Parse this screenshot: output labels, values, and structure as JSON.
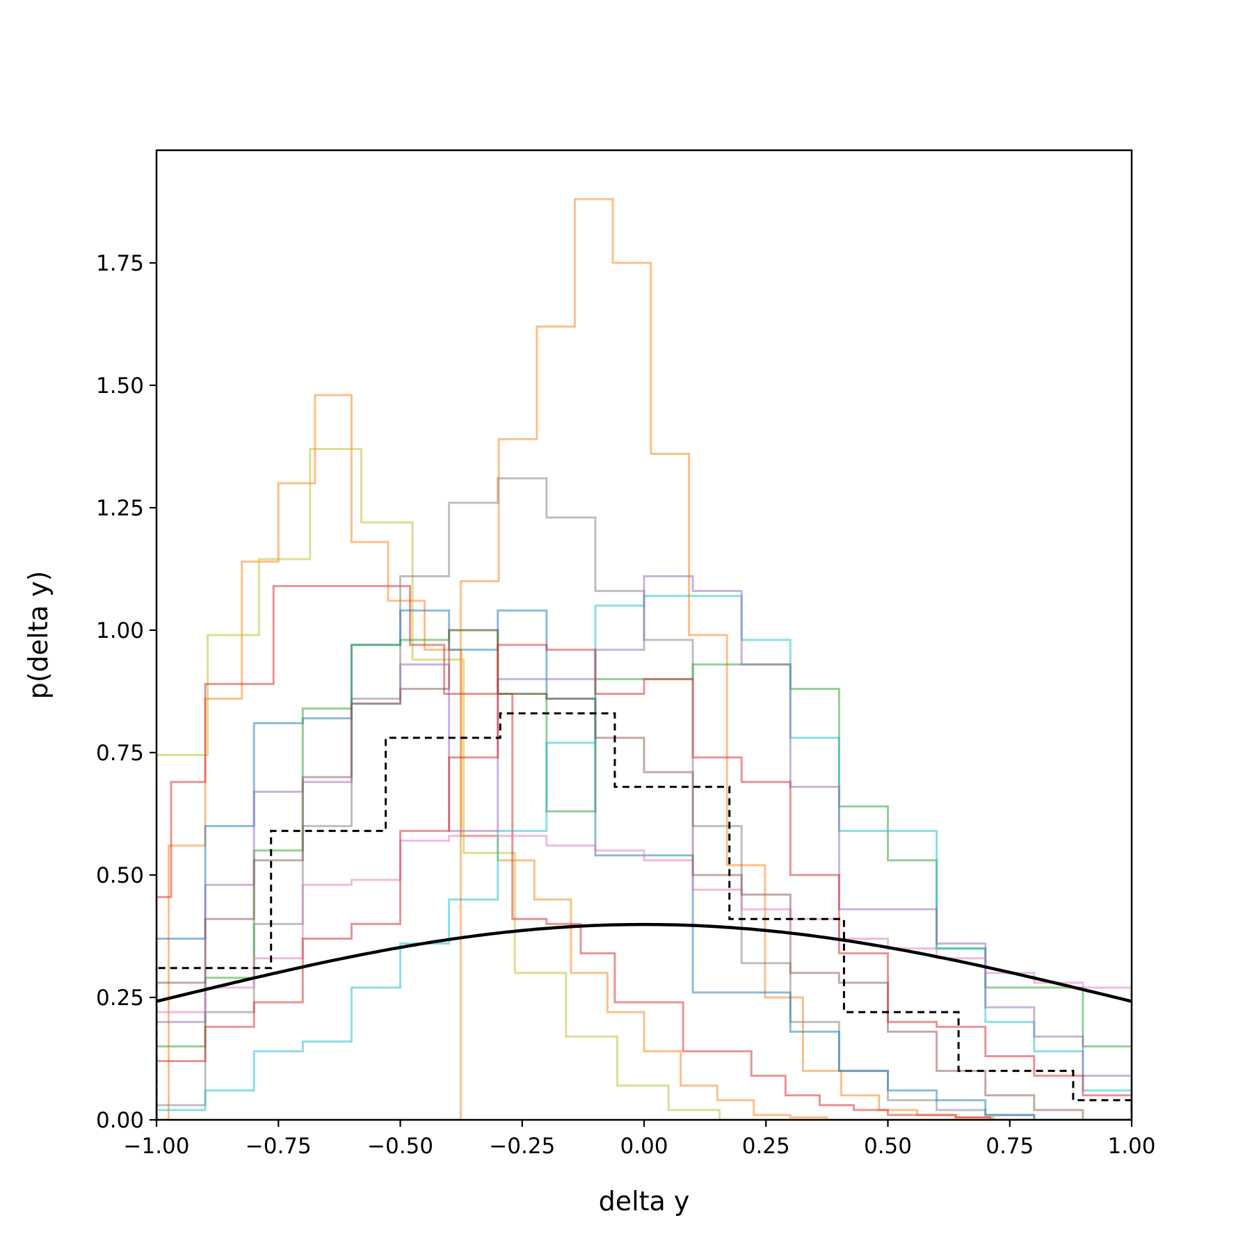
{
  "chart_data": {
    "type": "line",
    "title": "",
    "xlabel": "delta y",
    "ylabel": "p(delta y)",
    "xlim": [
      -1.0,
      1.0
    ],
    "ylim": [
      0.0,
      1.98
    ],
    "xticks": [
      -1.0,
      -0.75,
      -0.5,
      -0.25,
      0.0,
      0.25,
      0.5,
      0.75,
      1.0
    ],
    "xtick_labels": [
      "−1.00",
      "−0.75",
      "−0.50",
      "−0.25",
      "0.00",
      "0.25",
      "0.50",
      "0.75",
      "1.00"
    ],
    "yticks": [
      0.0,
      0.25,
      0.5,
      0.75,
      1.0,
      1.25,
      1.5,
      1.75
    ],
    "ytick_labels": [
      "0.00",
      "0.25",
      "0.50",
      "0.75",
      "1.00",
      "1.25",
      "1.50",
      "1.75"
    ],
    "grid": false,
    "legend": "none",
    "histograms": [
      {
        "color": "#ff7f0e",
        "edges": [
          -1.0,
          -0.922,
          -0.844,
          -0.766,
          -0.688,
          -0.61,
          -0.532,
          -0.454,
          -0.376,
          -0.298,
          -0.22,
          -0.142,
          -0.064,
          0.014,
          0.092,
          0.17,
          0.248,
          0.326,
          0.404,
          0.482,
          0.56,
          0.638,
          0.716,
          0.794,
          0.872,
          0.95,
          1.0
        ],
        "values": [
          0.0,
          0.0,
          0.0,
          0.0,
          0.0,
          0.0,
          0.0,
          0.0,
          1.1,
          1.39,
          1.62,
          1.88,
          1.75,
          1.36,
          0.99,
          0.52,
          0.25,
          0.1,
          0.05,
          0.02,
          0.01,
          0.005,
          0.0,
          0.0,
          0.0,
          0.0
        ]
      },
      {
        "color": "#ff7f0e",
        "edges": [
          -1.0,
          -0.975,
          -0.9,
          -0.825,
          -0.75,
          -0.675,
          -0.6,
          -0.525,
          -0.45,
          -0.375,
          -0.3,
          -0.225,
          -0.15,
          -0.075,
          0.0,
          0.075,
          0.15,
          0.225,
          0.3,
          0.375,
          0.45,
          0.525,
          0.6,
          0.675,
          0.75,
          0.825,
          0.9,
          0.975
        ],
        "values": [
          0.0,
          0.56,
          0.86,
          1.14,
          1.3,
          1.48,
          1.18,
          1.06,
          0.96,
          0.58,
          0.53,
          0.45,
          0.3,
          0.22,
          0.14,
          0.07,
          0.04,
          0.01,
          0.005,
          0.0,
          0.0,
          0.0,
          0.0,
          0.0,
          0.0,
          0.0,
          0.0
        ]
      },
      {
        "color": "#bcbd22",
        "edges": [
          -1.0,
          -0.895,
          -0.79,
          -0.685,
          -0.58,
          -0.475,
          -0.37,
          -0.265,
          -0.16,
          -0.055,
          0.05,
          0.155,
          0.26,
          0.365,
          0.47,
          0.575,
          0.68,
          0.785,
          0.89,
          1.0
        ],
        "values": [
          0.745,
          0.99,
          1.145,
          1.37,
          1.22,
          0.94,
          0.545,
          0.3,
          0.17,
          0.07,
          0.02,
          0.0,
          0.0,
          0.0,
          0.0,
          0.0,
          0.0,
          0.0,
          0.0
        ]
      },
      {
        "color": "#d62728",
        "edges": [
          -1.0,
          -0.97,
          -0.9,
          -0.83,
          -0.76,
          -0.69,
          -0.62,
          -0.55,
          -0.48,
          -0.41,
          -0.34,
          -0.27,
          -0.2,
          -0.13,
          -0.06,
          0.01,
          0.08,
          0.15,
          0.22,
          0.29,
          0.36,
          0.43,
          0.5,
          0.57,
          0.64,
          0.71,
          0.78,
          0.85,
          0.92,
          1.0
        ],
        "values": [
          0.455,
          0.69,
          0.89,
          0.89,
          1.09,
          1.09,
          1.09,
          1.09,
          0.97,
          0.87,
          0.87,
          0.41,
          0.4,
          0.34,
          0.24,
          0.24,
          0.14,
          0.14,
          0.09,
          0.05,
          0.03,
          0.02,
          0.01,
          0.01,
          0.005,
          0.0,
          0.0,
          0.0,
          0.0
        ]
      },
      {
        "color": "#7f7f7f",
        "edges": [
          -1.0,
          -0.9,
          -0.8,
          -0.7,
          -0.6,
          -0.5,
          -0.4,
          -0.3,
          -0.2,
          -0.1,
          0.0,
          0.1,
          0.2,
          0.3,
          0.4,
          0.5,
          0.6,
          0.7,
          0.8,
          0.9,
          1.0
        ],
        "values": [
          0.03,
          0.22,
          0.4,
          0.6,
          0.86,
          1.11,
          1.26,
          1.31,
          1.23,
          1.08,
          0.98,
          0.6,
          0.32,
          0.2,
          0.1,
          0.04,
          0.02,
          0.01,
          0.0,
          0.0
        ]
      },
      {
        "color": "#1f77b4",
        "edges": [
          -1.0,
          -0.9,
          -0.8,
          -0.7,
          -0.6,
          -0.5,
          -0.4,
          -0.3,
          -0.2,
          -0.1,
          0.0,
          0.1,
          0.2,
          0.3,
          0.4,
          0.5,
          0.6,
          0.7,
          0.8,
          0.9,
          1.0
        ],
        "values": [
          0.37,
          0.6,
          0.81,
          0.82,
          0.97,
          1.04,
          0.96,
          1.04,
          0.86,
          0.54,
          0.54,
          0.26,
          0.26,
          0.18,
          0.1,
          0.06,
          0.04,
          0.01,
          0.0,
          0.0
        ]
      },
      {
        "color": "#2ca02c",
        "edges": [
          -1.0,
          -0.9,
          -0.8,
          -0.7,
          -0.6,
          -0.5,
          -0.4,
          -0.3,
          -0.2,
          -0.1,
          0.0,
          0.1,
          0.2,
          0.3,
          0.4,
          0.5,
          0.6,
          0.7,
          0.8,
          0.9,
          1.0
        ],
        "values": [
          0.15,
          0.29,
          0.55,
          0.84,
          0.97,
          0.98,
          1.0,
          0.87,
          0.63,
          0.9,
          0.9,
          0.93,
          0.93,
          0.88,
          0.64,
          0.53,
          0.35,
          0.27,
          0.27,
          0.15
        ]
      },
      {
        "color": "#17becf",
        "edges": [
          -1.0,
          -0.9,
          -0.8,
          -0.7,
          -0.6,
          -0.5,
          -0.4,
          -0.3,
          -0.2,
          -0.1,
          0.0,
          0.1,
          0.2,
          0.3,
          0.4,
          0.5,
          0.6,
          0.7,
          0.8,
          0.9,
          1.0
        ],
        "values": [
          0.02,
          0.06,
          0.14,
          0.16,
          0.27,
          0.36,
          0.45,
          0.59,
          0.77,
          1.05,
          1.07,
          1.07,
          0.98,
          0.78,
          0.59,
          0.59,
          0.35,
          0.2,
          0.14,
          0.06
        ]
      },
      {
        "color": "#9467bd",
        "edges": [
          -1.0,
          -0.9,
          -0.8,
          -0.7,
          -0.6,
          -0.5,
          -0.4,
          -0.3,
          -0.2,
          -0.1,
          0.0,
          0.1,
          0.2,
          0.3,
          0.4,
          0.5,
          0.6,
          0.7,
          0.8,
          0.9,
          1.0
        ],
        "values": [
          0.2,
          0.48,
          0.67,
          0.69,
          0.85,
          0.93,
          0.59,
          0.9,
          0.9,
          0.96,
          1.11,
          1.08,
          0.93,
          0.68,
          0.43,
          0.43,
          0.36,
          0.23,
          0.17,
          0.09
        ]
      },
      {
        "color": "#e377c2",
        "edges": [
          -1.0,
          -0.9,
          -0.8,
          -0.7,
          -0.6,
          -0.5,
          -0.4,
          -0.3,
          -0.2,
          -0.1,
          0.0,
          0.1,
          0.2,
          0.3,
          0.4,
          0.5,
          0.6,
          0.7,
          0.8,
          0.9,
          1.0
        ],
        "values": [
          0.22,
          0.27,
          0.33,
          0.48,
          0.49,
          0.57,
          0.58,
          0.58,
          0.56,
          0.55,
          0.53,
          0.47,
          0.43,
          0.41,
          0.37,
          0.35,
          0.33,
          0.3,
          0.28,
          0.27
        ]
      },
      {
        "color": "#8c564b",
        "edges": [
          -1.0,
          -0.9,
          -0.8,
          -0.7,
          -0.6,
          -0.5,
          -0.4,
          -0.3,
          -0.2,
          -0.1,
          0.0,
          0.1,
          0.2,
          0.3,
          0.4,
          0.5,
          0.6,
          0.7,
          0.8,
          0.9,
          1.0
        ],
        "values": [
          0.28,
          0.41,
          0.53,
          0.7,
          0.85,
          0.88,
          1.0,
          0.87,
          0.86,
          0.78,
          0.71,
          0.5,
          0.46,
          0.3,
          0.28,
          0.18,
          0.1,
          0.05,
          0.02,
          0.0
        ]
      },
      {
        "color": "#d62728",
        "edges": [
          -1.0,
          -0.9,
          -0.8,
          -0.7,
          -0.6,
          -0.5,
          -0.4,
          -0.3,
          -0.2,
          -0.1,
          0.0,
          0.1,
          0.2,
          0.3,
          0.4,
          0.5,
          0.6,
          0.7,
          0.8,
          0.9,
          1.0
        ],
        "values": [
          0.12,
          0.19,
          0.24,
          0.37,
          0.4,
          0.59,
          0.74,
          0.97,
          0.96,
          0.87,
          0.9,
          0.74,
          0.69,
          0.5,
          0.34,
          0.2,
          0.19,
          0.13,
          0.09,
          0.05
        ]
      }
    ],
    "reference_histogram": {
      "color": "#000000",
      "style": "dashed",
      "edges": [
        -1.0,
        -0.765,
        -0.53,
        -0.295,
        -0.06,
        0.175,
        0.41,
        0.645,
        0.88,
        1.0
      ],
      "values": [
        0.31,
        0.59,
        0.78,
        0.83,
        0.68,
        0.41,
        0.22,
        0.1,
        0.04
      ]
    },
    "curve": {
      "color": "#000000",
      "label": "",
      "mean": 0.0,
      "std": 1.0,
      "x": [
        -1.0,
        -0.8,
        -0.6,
        -0.4,
        -0.2,
        0.0,
        0.2,
        0.4,
        0.6,
        0.8,
        1.0
      ],
      "y": [
        0.242,
        0.29,
        0.333,
        0.368,
        0.391,
        0.399,
        0.391,
        0.368,
        0.333,
        0.29,
        0.242
      ]
    }
  }
}
